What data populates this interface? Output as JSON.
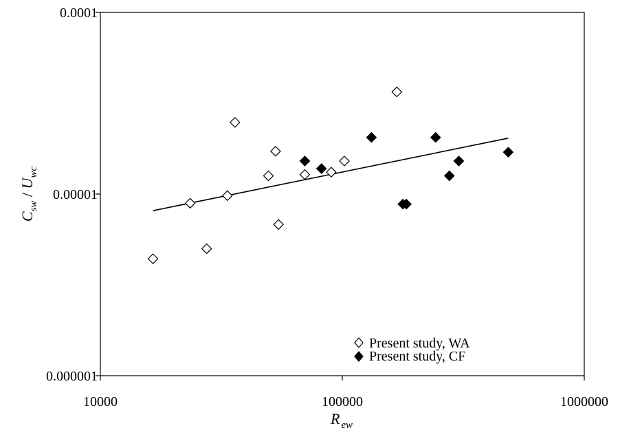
{
  "chart_data": {
    "type": "scatter",
    "xscale": "log",
    "yscale": "log",
    "xlim": [
      10000,
      1000000
    ],
    "ylim": [
      1e-06,
      0.0001
    ],
    "x_ticks": [
      "10000",
      "100000",
      "1000000"
    ],
    "y_ticks": [
      "0.000001",
      "0.00001",
      "0.0001"
    ],
    "x_tick_values": [
      10000,
      100000,
      1000000
    ],
    "y_tick_values": [
      1e-06,
      1e-05,
      0.0001
    ],
    "xlabel": {
      "main": "R",
      "sub": "ew"
    },
    "ylabel": {
      "part1": "C",
      "sub1": "sw",
      "sep": " / ",
      "part2": "U",
      "sub2": "wc"
    },
    "grid": false,
    "legend_position": "bottom-right",
    "series": [
      {
        "name": "Present study, WA",
        "marker": "diamond-open",
        "color": "#000000",
        "points": [
          [
            16500,
            4.4e-06
          ],
          [
            23500,
            8.9e-06
          ],
          [
            27500,
            5e-06
          ],
          [
            33500,
            9.8e-06
          ],
          [
            36000,
            2.48e-05
          ],
          [
            49500,
            1.26e-05
          ],
          [
            53000,
            1.72e-05
          ],
          [
            54500,
            6.8e-06
          ],
          [
            70000,
            1.28e-05
          ],
          [
            90000,
            1.32e-05
          ],
          [
            102000,
            1.52e-05
          ],
          [
            168000,
            3.65e-05
          ]
        ]
      },
      {
        "name": "Present study, CF",
        "marker": "diamond-filled",
        "color": "#000000",
        "points": [
          [
            70000,
            1.52e-05
          ],
          [
            82000,
            1.38e-05
          ],
          [
            132000,
            2.05e-05
          ],
          [
            178000,
            8.8e-06
          ],
          [
            184000,
            8.8e-06
          ],
          [
            243000,
            2.05e-05
          ],
          [
            277000,
            1.26e-05
          ],
          [
            303000,
            1.52e-05
          ],
          [
            485000,
            1.7e-05
          ]
        ]
      }
    ],
    "trendline": {
      "type": "power",
      "points": [
        [
          16500,
          8.1e-06
        ],
        [
          485000,
          2.03e-05
        ]
      ]
    }
  }
}
